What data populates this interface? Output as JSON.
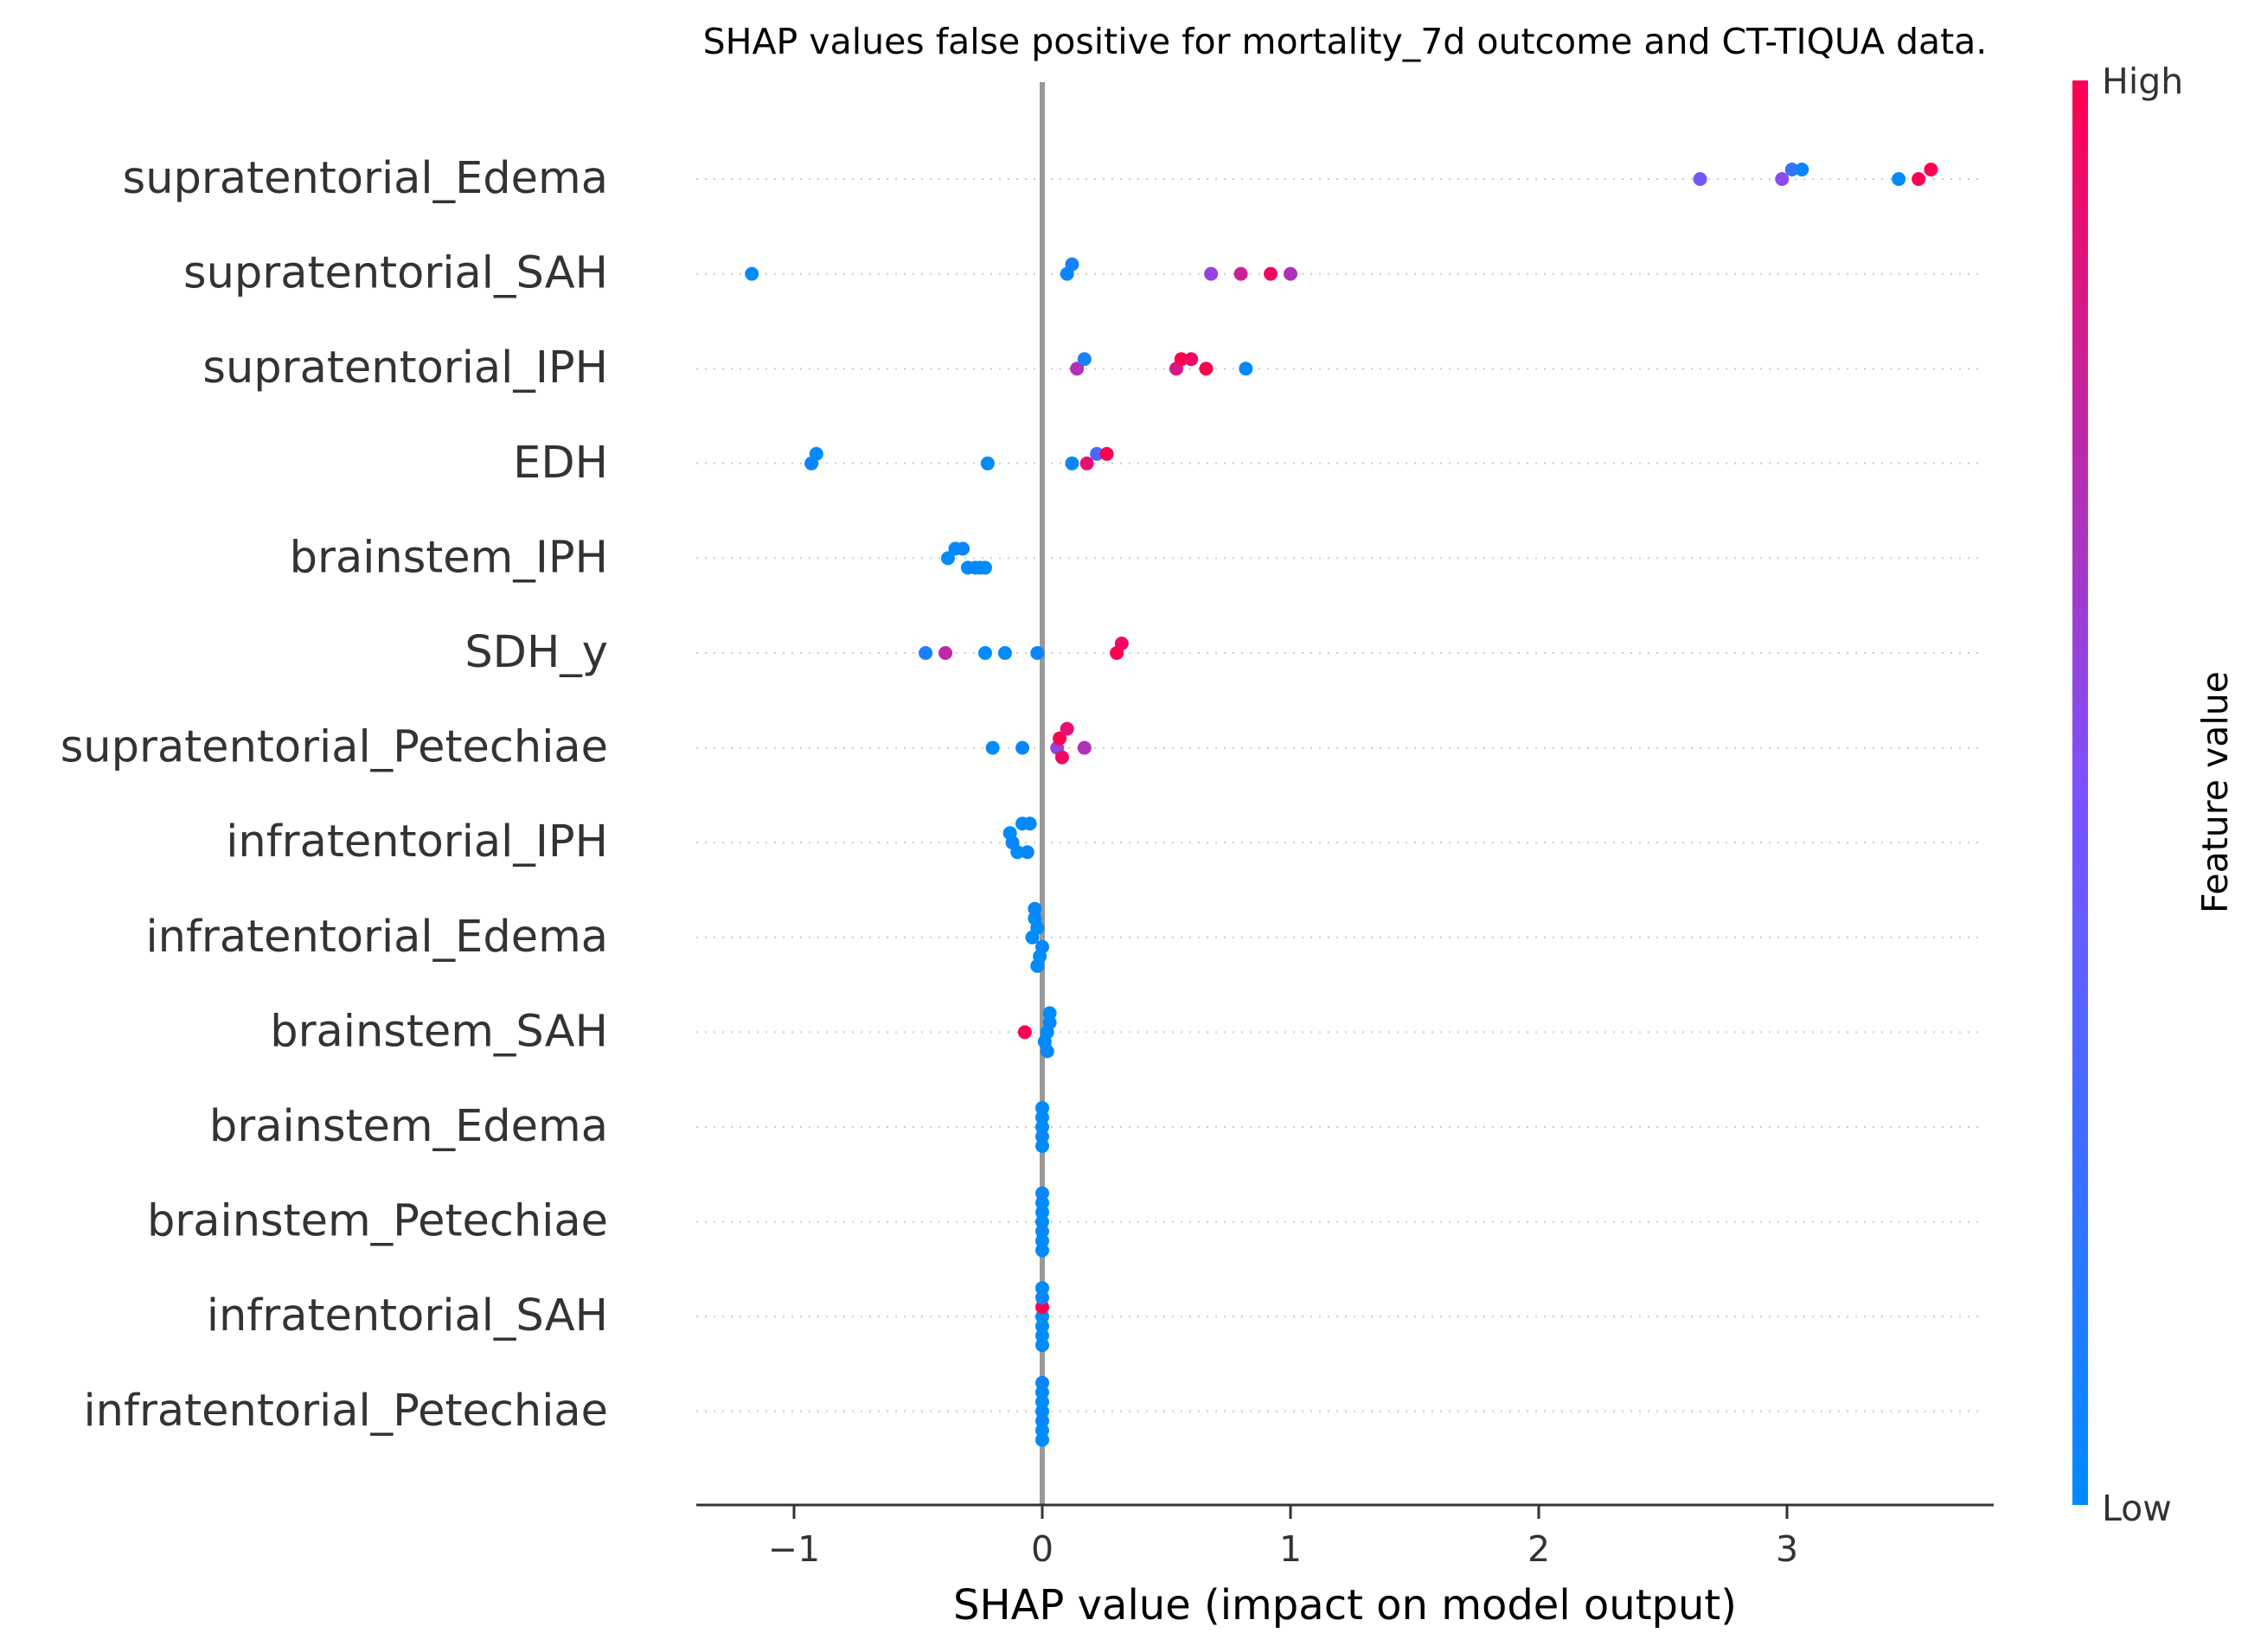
{
  "chart_data": {
    "type": "scatter",
    "subtype": "shap-beeswarm",
    "title": "SHAP values false positive for mortality_7d outcome and CT-TIQUA data.",
    "xlabel": "SHAP value (impact on model output)",
    "ylabel": "",
    "xlim": [
      -1.4,
      3.85
    ],
    "xticks": [
      -1,
      0,
      1,
      2,
      3
    ],
    "xtick_labels": [
      "−1",
      "0",
      "1",
      "2",
      "3"
    ],
    "zero_line": 0,
    "grid": "dotted-horizontal",
    "colorbar": {
      "label": "Feature value",
      "high_label": "High",
      "low_label": "Low",
      "low_color": "#008bfb",
      "mid_color": "#7c52ff",
      "high_color": "#ff0051"
    },
    "features": [
      {
        "name": "supratentorial_Edema",
        "points": [
          {
            "x": 2.65,
            "v": 0.45
          },
          {
            "x": 2.98,
            "v": 0.55
          },
          {
            "x": 3.02,
            "v": 0.2
          },
          {
            "x": 3.06,
            "v": 0.05
          },
          {
            "x": 3.45,
            "v": 0.0
          },
          {
            "x": 3.53,
            "v": 1.0
          },
          {
            "x": 3.58,
            "v": 1.0
          }
        ]
      },
      {
        "name": "supratentorial_SAH",
        "points": [
          {
            "x": -1.17,
            "v": 0.0
          },
          {
            "x": 0.1,
            "v": 0.05
          },
          {
            "x": 0.12,
            "v": 0.1
          },
          {
            "x": 0.68,
            "v": 0.6
          },
          {
            "x": 0.8,
            "v": 0.8
          },
          {
            "x": 0.92,
            "v": 0.95
          },
          {
            "x": 1.0,
            "v": 0.7
          }
        ]
      },
      {
        "name": "supratentorial_IPH",
        "points": [
          {
            "x": 0.14,
            "v": 0.7
          },
          {
            "x": 0.17,
            "v": 0.1
          },
          {
            "x": 0.54,
            "v": 0.85
          },
          {
            "x": 0.56,
            "v": 1.0
          },
          {
            "x": 0.6,
            "v": 0.95
          },
          {
            "x": 0.66,
            "v": 1.0
          },
          {
            "x": 0.82,
            "v": 0.0
          }
        ]
      },
      {
        "name": "EDH",
        "points": [
          {
            "x": -0.93,
            "v": 0.05
          },
          {
            "x": -0.91,
            "v": 0.0
          },
          {
            "x": -0.22,
            "v": 0.0
          },
          {
            "x": 0.12,
            "v": 0.05
          },
          {
            "x": 0.18,
            "v": 0.9
          },
          {
            "x": 0.22,
            "v": 0.3
          },
          {
            "x": 0.26,
            "v": 1.0
          }
        ]
      },
      {
        "name": "brainstem_IPH",
        "points": [
          {
            "x": -0.38,
            "v": 0.0
          },
          {
            "x": -0.35,
            "v": 0.0
          },
          {
            "x": -0.32,
            "v": 0.05
          },
          {
            "x": -0.3,
            "v": 0.0
          },
          {
            "x": -0.27,
            "v": 0.05
          },
          {
            "x": -0.25,
            "v": 0.0
          },
          {
            "x": -0.23,
            "v": 0.0
          }
        ]
      },
      {
        "name": "SDH_y",
        "points": [
          {
            "x": -0.47,
            "v": 0.1
          },
          {
            "x": -0.39,
            "v": 0.75
          },
          {
            "x": -0.23,
            "v": 0.0
          },
          {
            "x": -0.15,
            "v": 0.0
          },
          {
            "x": -0.02,
            "v": 0.05
          },
          {
            "x": 0.3,
            "v": 1.0
          },
          {
            "x": 0.32,
            "v": 0.95
          }
        ]
      },
      {
        "name": "supratentorial_Petechiae",
        "points": [
          {
            "x": -0.2,
            "v": 0.0
          },
          {
            "x": -0.08,
            "v": 0.05
          },
          {
            "x": 0.06,
            "v": 0.6
          },
          {
            "x": 0.07,
            "v": 1.0
          },
          {
            "x": 0.08,
            "v": 0.95
          },
          {
            "x": 0.1,
            "v": 0.9
          },
          {
            "x": 0.17,
            "v": 0.7
          }
        ]
      },
      {
        "name": "infratentorial_IPH",
        "points": [
          {
            "x": -0.12,
            "v": 0.05
          },
          {
            "x": -0.13,
            "v": 0.0
          },
          {
            "x": -0.1,
            "v": 0.0
          },
          {
            "x": -0.08,
            "v": 0.0
          },
          {
            "x": -0.06,
            "v": 0.05
          },
          {
            "x": -0.05,
            "v": 0.0
          }
        ]
      },
      {
        "name": "infratentorial_Edema",
        "points": [
          {
            "x": -0.04,
            "v": 0.0
          },
          {
            "x": -0.02,
            "v": 0.0
          },
          {
            "x": 0.0,
            "v": 0.05
          },
          {
            "x": -0.03,
            "v": 0.0
          },
          {
            "x": -0.01,
            "v": 0.0
          },
          {
            "x": -0.03,
            "v": 0.05
          },
          {
            "x": -0.02,
            "v": 0.0
          }
        ]
      },
      {
        "name": "brainstem_SAH",
        "points": [
          {
            "x": 0.02,
            "v": 0.0
          },
          {
            "x": 0.03,
            "v": 0.05
          },
          {
            "x": -0.07,
            "v": 1.0
          },
          {
            "x": 0.01,
            "v": 0.0
          },
          {
            "x": 0.03,
            "v": 0.0
          },
          {
            "x": 0.02,
            "v": 0.05
          }
        ]
      },
      {
        "name": "brainstem_Edema",
        "points": [
          {
            "x": 0.0,
            "v": 0.0
          },
          {
            "x": 0.0,
            "v": 0.0
          },
          {
            "x": 0.0,
            "v": 0.05
          },
          {
            "x": 0.0,
            "v": 0.0
          },
          {
            "x": 0.0,
            "v": 0.0
          }
        ]
      },
      {
        "name": "brainstem_Petechiae",
        "points": [
          {
            "x": 0.0,
            "v": 0.0
          },
          {
            "x": 0.0,
            "v": 0.0
          },
          {
            "x": 0.0,
            "v": 0.05
          },
          {
            "x": 0.0,
            "v": 0.0
          },
          {
            "x": 0.0,
            "v": 0.0
          },
          {
            "x": 0.0,
            "v": 0.05
          },
          {
            "x": 0.0,
            "v": 0.0
          }
        ]
      },
      {
        "name": "infratentorial_SAH",
        "points": [
          {
            "x": 0.0,
            "v": 0.0
          },
          {
            "x": 0.0,
            "v": 1.0
          },
          {
            "x": 0.0,
            "v": 0.0
          },
          {
            "x": 0.0,
            "v": 0.05
          },
          {
            "x": 0.0,
            "v": 0.0
          },
          {
            "x": 0.0,
            "v": 0.0
          },
          {
            "x": 0.0,
            "v": 0.0
          }
        ]
      },
      {
        "name": "infratentorial_Petechiae",
        "points": [
          {
            "x": 0.0,
            "v": 0.0
          },
          {
            "x": 0.0,
            "v": 0.0
          },
          {
            "x": 0.0,
            "v": 0.05
          },
          {
            "x": 0.0,
            "v": 0.0
          },
          {
            "x": 0.0,
            "v": 0.0
          },
          {
            "x": 0.0,
            "v": 0.05
          },
          {
            "x": 0.0,
            "v": 0.0
          }
        ]
      }
    ]
  }
}
